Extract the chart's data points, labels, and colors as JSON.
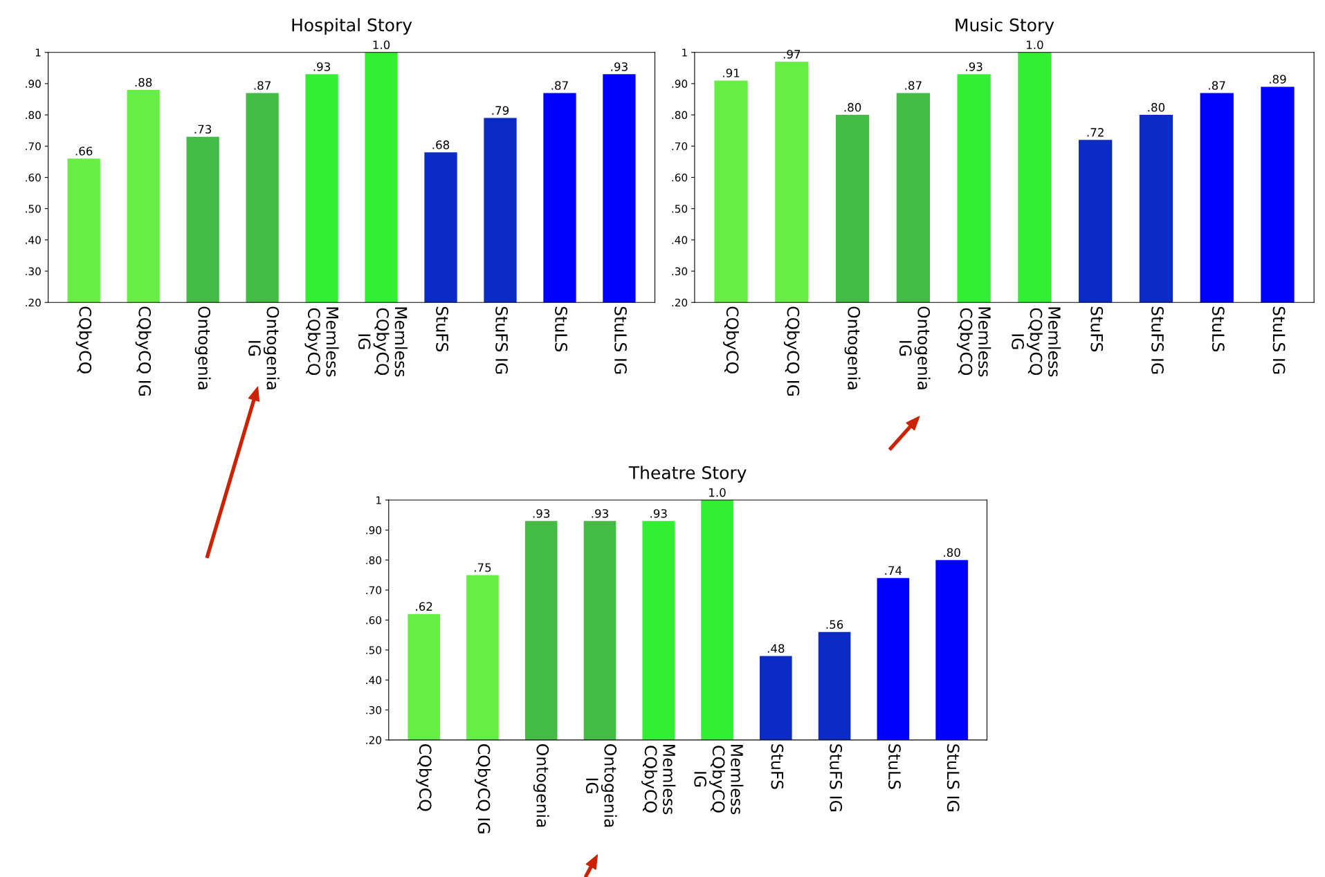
{
  "chart_data": [
    {
      "type": "bar",
      "title": "Hospital Story",
      "categories": [
        "CQbyCQ",
        "CQbyCQ IG",
        "Ontogenia",
        "Ontogenia\nIG",
        "Memless\nCQbyCQ",
        "Memless\nCQbyCQ\nIG",
        "StuFS",
        "StuFS IG",
        "StuLS",
        "StuLS IG"
      ],
      "values": [
        0.66,
        0.88,
        0.73,
        0.87,
        0.93,
        1.0,
        0.68,
        0.79,
        0.87,
        0.93
      ],
      "value_labels": [
        ".66",
        ".88",
        ".73",
        ".87",
        ".93",
        "1.0",
        ".68",
        ".79",
        ".87",
        ".93"
      ],
      "colors": [
        "#66ee44",
        "#66ee44",
        "#44bb44",
        "#44bb44",
        "#33ee33",
        "#33ee33",
        "#0a2bc4",
        "#0a2bc4",
        "#0000ff",
        "#0000ff"
      ],
      "ylim": [
        0.2,
        1
      ],
      "yticks": [
        {
          "value": 0.2,
          "label": ".20"
        },
        {
          "value": 0.3,
          "label": ".30"
        },
        {
          "value": 0.4,
          "label": ".40"
        },
        {
          "value": 0.5,
          "label": ".50"
        },
        {
          "value": 0.6,
          "label": ".60"
        },
        {
          "value": 0.7,
          "label": ".70"
        },
        {
          "value": 0.8,
          "label": ".80"
        },
        {
          "value": 0.9,
          "label": ".90"
        },
        1
      ],
      "grid": false,
      "legend": false
    },
    {
      "type": "bar",
      "title": "Music Story",
      "categories": [
        "CQbyCQ",
        "CQbyCQ IG",
        "Ontogenia",
        "Ontogenia\nIG",
        "Memless\nCQbyCQ",
        "Memless\nCQbyCQ\nIG",
        "StuFS",
        "StuFS IG",
        "StuLS",
        "StuLS IG"
      ],
      "values": [
        0.91,
        0.97,
        0.8,
        0.87,
        0.93,
        1.0,
        0.72,
        0.8,
        0.87,
        0.89
      ],
      "value_labels": [
        ".91",
        ".97",
        ".80",
        ".87",
        ".93",
        "1.0",
        ".72",
        ".80",
        ".87",
        ".89"
      ],
      "colors": [
        "#66ee44",
        "#66ee44",
        "#44bb44",
        "#44bb44",
        "#33ee33",
        "#33ee33",
        "#0a2bc4",
        "#0a2bc4",
        "#0000ff",
        "#0000ff"
      ],
      "ylim": [
        0.2,
        1
      ],
      "yticks": [
        {
          "value": 0.2,
          "label": ".20"
        },
        {
          "value": 0.3,
          "label": ".30"
        },
        {
          "value": 0.4,
          "label": ".40"
        },
        {
          "value": 0.5,
          "label": ".50"
        },
        {
          "value": 0.6,
          "label": ".60"
        },
        {
          "value": 0.7,
          "label": ".70"
        },
        {
          "value": 0.8,
          "label": ".80"
        },
        {
          "value": 0.9,
          "label": ".90"
        },
        1
      ],
      "grid": false,
      "legend": false
    },
    {
      "type": "bar",
      "title": "Theatre Story",
      "categories": [
        "CQbyCQ",
        "CQbyCQ IG",
        "Ontogenia",
        "Ontogenia\nIG",
        "Memless\nCQbyCQ",
        "Memless\nCQbyCQ\nIG",
        "StuFS",
        "StuFS IG",
        "StuLS",
        "StuLS IG"
      ],
      "values": [
        0.62,
        0.75,
        0.93,
        0.93,
        0.93,
        1.0,
        0.48,
        0.56,
        0.74,
        0.8
      ],
      "value_labels": [
        ".62",
        ".75",
        ".93",
        ".93",
        ".93",
        "1.0",
        ".48",
        ".56",
        ".74",
        ".80"
      ],
      "colors": [
        "#66ee44",
        "#66ee44",
        "#44bb44",
        "#44bb44",
        "#33ee33",
        "#33ee33",
        "#0a2bc4",
        "#0a2bc4",
        "#0000ff",
        "#0000ff"
      ],
      "ylim": [
        0.2,
        1
      ],
      "yticks": [
        {
          "value": 0.2,
          "label": ".20"
        },
        {
          "value": 0.3,
          "label": ".30"
        },
        {
          "value": 0.4,
          "label": ".40"
        },
        {
          "value": 0.5,
          "label": ".50"
        },
        {
          "value": 0.6,
          "label": ".60"
        },
        {
          "value": 0.7,
          "label": ".70"
        },
        {
          "value": 0.8,
          "label": ".80"
        },
        {
          "value": 0.9,
          "label": ".90"
        },
        1
      ],
      "grid": false,
      "legend": false
    }
  ]
}
